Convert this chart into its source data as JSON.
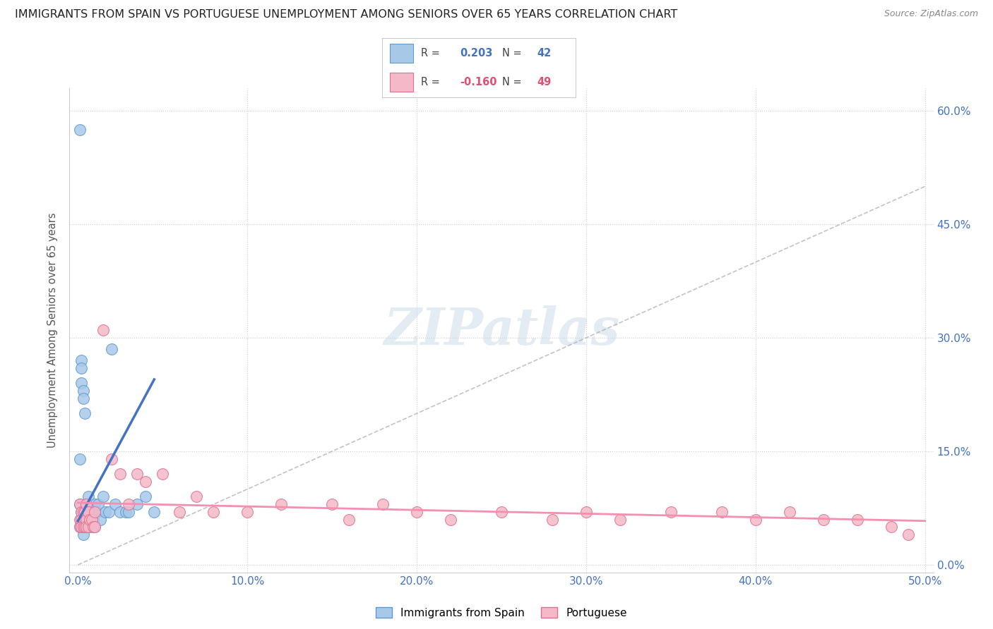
{
  "title": "IMMIGRANTS FROM SPAIN VS PORTUGUESE UNEMPLOYMENT AMONG SENIORS OVER 65 YEARS CORRELATION CHART",
  "source": "Source: ZipAtlas.com",
  "ylabel": "Unemployment Among Seniors over 65 years",
  "legend1_label": "Immigrants from Spain",
  "legend2_label": "Portuguese",
  "r1": 0.203,
  "n1": 42,
  "r2": -0.16,
  "n2": 49,
  "color_blue_fill": "#A8C8E8",
  "color_blue_edge": "#5B9BD5",
  "color_pink_fill": "#F4B8C8",
  "color_pink_edge": "#E07090",
  "color_blue_line": "#4472C4",
  "color_pink_line": "#F48FB1",
  "color_dashed": "#AAAAAA",
  "watermark": "ZIPatlas",
  "xlim": [
    0.0,
    0.5
  ],
  "ylim": [
    0.0,
    0.63
  ],
  "xticks": [
    0.0,
    0.1,
    0.2,
    0.3,
    0.4,
    0.5
  ],
  "yticks": [
    0.0,
    0.15,
    0.3,
    0.45,
    0.6
  ],
  "blue_points_x": [
    0.001,
    0.001,
    0.001,
    0.001,
    0.002,
    0.002,
    0.002,
    0.002,
    0.002,
    0.003,
    0.003,
    0.003,
    0.003,
    0.004,
    0.004,
    0.004,
    0.005,
    0.005,
    0.005,
    0.006,
    0.006,
    0.006,
    0.007,
    0.007,
    0.008,
    0.009,
    0.01,
    0.01,
    0.011,
    0.012,
    0.013,
    0.015,
    0.016,
    0.018,
    0.02,
    0.022,
    0.025,
    0.028,
    0.03,
    0.035,
    0.04,
    0.045
  ],
  "blue_points_y": [
    0.575,
    0.14,
    0.08,
    0.05,
    0.27,
    0.26,
    0.24,
    0.07,
    0.05,
    0.23,
    0.22,
    0.06,
    0.04,
    0.2,
    0.07,
    0.05,
    0.08,
    0.06,
    0.05,
    0.09,
    0.07,
    0.05,
    0.07,
    0.05,
    0.07,
    0.06,
    0.08,
    0.05,
    0.07,
    0.08,
    0.06,
    0.09,
    0.07,
    0.07,
    0.285,
    0.08,
    0.07,
    0.07,
    0.07,
    0.08,
    0.09,
    0.07
  ],
  "pink_points_x": [
    0.001,
    0.001,
    0.001,
    0.002,
    0.002,
    0.002,
    0.003,
    0.003,
    0.004,
    0.004,
    0.005,
    0.005,
    0.005,
    0.006,
    0.006,
    0.007,
    0.008,
    0.009,
    0.01,
    0.01,
    0.015,
    0.02,
    0.025,
    0.03,
    0.035,
    0.04,
    0.05,
    0.06,
    0.07,
    0.08,
    0.1,
    0.12,
    0.15,
    0.16,
    0.18,
    0.2,
    0.22,
    0.25,
    0.28,
    0.3,
    0.32,
    0.35,
    0.38,
    0.4,
    0.42,
    0.44,
    0.46,
    0.48,
    0.49
  ],
  "pink_points_y": [
    0.08,
    0.06,
    0.05,
    0.07,
    0.06,
    0.05,
    0.07,
    0.05,
    0.07,
    0.05,
    0.08,
    0.06,
    0.05,
    0.07,
    0.05,
    0.06,
    0.06,
    0.05,
    0.07,
    0.05,
    0.31,
    0.14,
    0.12,
    0.08,
    0.12,
    0.11,
    0.12,
    0.07,
    0.09,
    0.07,
    0.07,
    0.08,
    0.08,
    0.06,
    0.08,
    0.07,
    0.06,
    0.07,
    0.06,
    0.07,
    0.06,
    0.07,
    0.07,
    0.06,
    0.07,
    0.06,
    0.06,
    0.05,
    0.04
  ],
  "blue_line_x0": 0.0,
  "blue_line_x1": 0.045,
  "blue_line_y0": 0.058,
  "blue_line_y1": 0.245,
  "pink_line_x0": 0.0,
  "pink_line_x1": 0.5,
  "pink_line_y0": 0.082,
  "pink_line_y1": 0.058,
  "dash_line_x0": 0.0,
  "dash_line_x1": 0.5,
  "dash_line_y0": 0.0,
  "dash_line_y1": 0.5
}
